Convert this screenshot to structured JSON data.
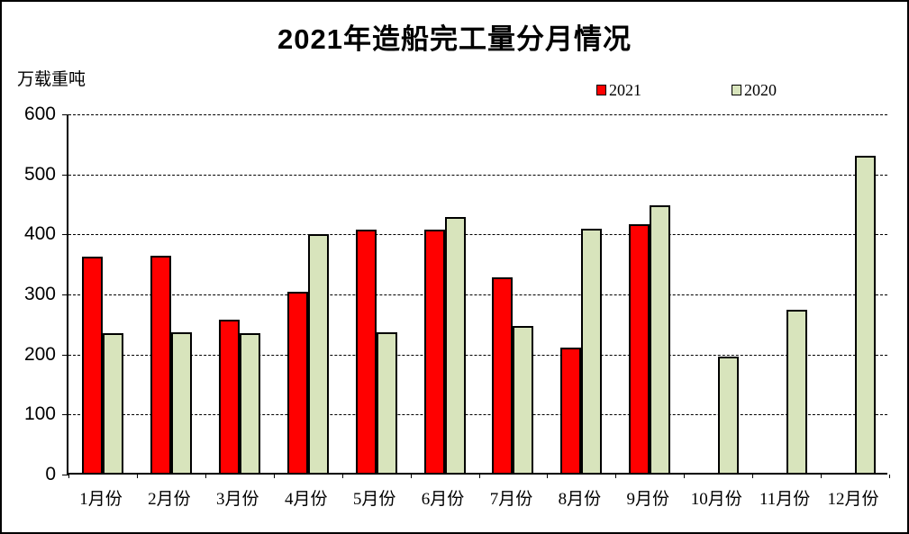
{
  "title": "2021年造船完工量分月情况",
  "y_unit_label": "万载重吨",
  "legend": [
    {
      "label": "2021",
      "color": "#FF0000"
    },
    {
      "label": "2020",
      "color": "#D8E4BC"
    }
  ],
  "y_axis_ticks": [
    "600",
    "500",
    "400",
    "300",
    "200",
    "100",
    "0"
  ],
  "chart_data": {
    "type": "bar",
    "title": "2021年造船完工量分月情况",
    "ylabel": "万载重吨",
    "xlabel": "",
    "ylim": [
      0,
      600
    ],
    "y_step": 100,
    "grid": "horizontal-dashed",
    "legend_position": "top-right",
    "categories": [
      "1月份",
      "2月份",
      "3月份",
      "4月份",
      "5月份",
      "6月份",
      "7月份",
      "8月份",
      "9月份",
      "10月份",
      "11月份",
      "12月份"
    ],
    "series": [
      {
        "name": "2021",
        "color": "#FF0000",
        "values": [
          360,
          362,
          255,
          302,
          405,
          405,
          325,
          208,
          414,
          null,
          null,
          null
        ]
      },
      {
        "name": "2020",
        "color": "#D8E4BC",
        "values": [
          233,
          234,
          232,
          398,
          234,
          426,
          245,
          406,
          446,
          193,
          272,
          528
        ]
      }
    ]
  }
}
